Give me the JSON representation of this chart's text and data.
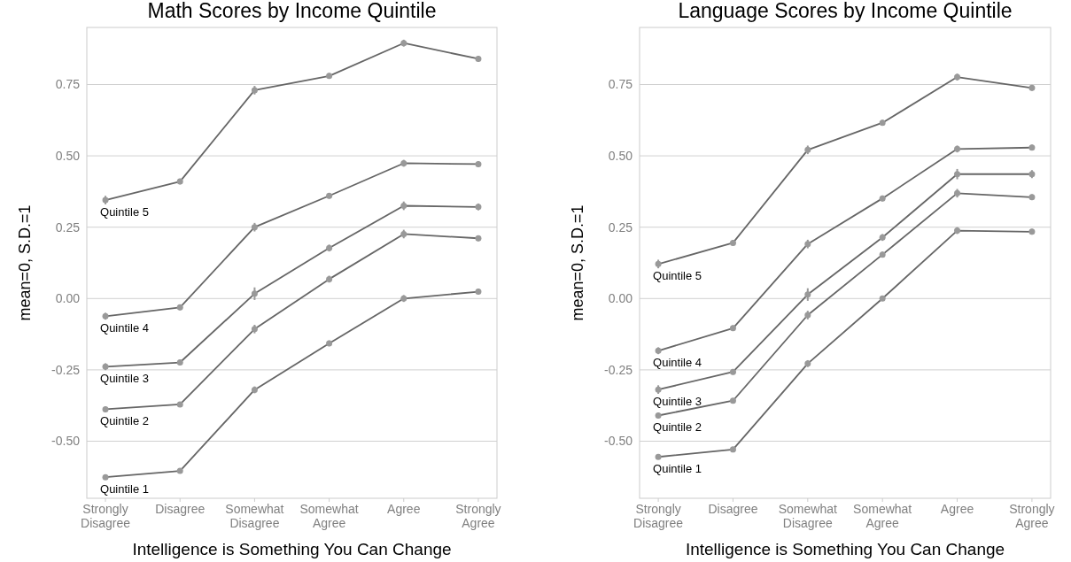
{
  "chart_data": [
    {
      "type": "line",
      "title": "Math Scores by Income Quintile",
      "xlabel": "Intelligence is Something You Can Change",
      "ylabel": "mean=0, S.D.=1",
      "categories": [
        "Strongly\nDisagree",
        "Disagree",
        "Somewhat\nDisagree",
        "Somewhat\nAgree",
        "Agree",
        "Strongly\nAgree"
      ],
      "ylim": [
        -0.7,
        0.95
      ],
      "yticks": [
        {
          "value": -0.5,
          "label": "-0.50"
        },
        {
          "value": -0.25,
          "label": "-0.25"
        },
        {
          "value": 0,
          "label": "0.00"
        },
        {
          "value": 0.25,
          "label": "0.25"
        },
        {
          "value": 0.5,
          "label": "0.50"
        },
        {
          "value": 0.75,
          "label": "0.75"
        }
      ],
      "grid": "y",
      "marker": "circle",
      "line_style": "solid",
      "series": [
        {
          "name": "Quintile 5",
          "color": "#666666",
          "values": [
            0.345,
            0.41,
            0.73,
            0.78,
            0.895,
            0.84
          ],
          "errors": [
            0.015,
            0.01,
            0.015,
            0.01,
            0.012,
            0.01
          ]
        },
        {
          "name": "Quintile 4",
          "color": "#666666",
          "values": [
            -0.062,
            -0.031,
            0.25,
            0.36,
            0.474,
            0.471
          ],
          "errors": [
            0.012,
            0.01,
            0.015,
            0.01,
            0.012,
            0.01
          ]
        },
        {
          "name": "Quintile 3",
          "color": "#666666",
          "values": [
            -0.239,
            -0.224,
            0.017,
            0.177,
            0.325,
            0.321
          ],
          "errors": [
            0.012,
            0.01,
            0.022,
            0.012,
            0.015,
            0.012
          ]
        },
        {
          "name": "Quintile 2",
          "color": "#666666",
          "values": [
            -0.388,
            -0.371,
            -0.107,
            0.068,
            0.226,
            0.211
          ],
          "errors": [
            0.01,
            0.008,
            0.015,
            0.012,
            0.015,
            0.01
          ]
        },
        {
          "name": "Quintile 1",
          "color": "#666666",
          "values": [
            -0.626,
            -0.604,
            -0.32,
            -0.157,
            0,
            0.024
          ],
          "errors": [
            0.008,
            0.008,
            0.012,
            0.01,
            0.012,
            0.01
          ]
        }
      ]
    },
    {
      "type": "line",
      "title": "Language Scores by Income Quintile",
      "xlabel": "Intelligence is Something You Can Change",
      "ylabel": "mean=0, S.D.=1",
      "categories": [
        "Strongly\nDisagree",
        "Disagree",
        "Somewhat\nDisagree",
        "Somewhat\nAgree",
        "Agree",
        "Strongly\nAgree"
      ],
      "ylim": [
        -0.7,
        0.95
      ],
      "yticks": [
        {
          "value": -0.5,
          "label": "-0.50"
        },
        {
          "value": -0.25,
          "label": "-0.25"
        },
        {
          "value": 0,
          "label": "0.00"
        },
        {
          "value": 0.25,
          "label": "0.25"
        },
        {
          "value": 0.5,
          "label": "0.50"
        },
        {
          "value": 0.75,
          "label": "0.75"
        }
      ],
      "grid": "y",
      "marker": "circle",
      "line_style": "solid",
      "series": [
        {
          "name": "Quintile 5",
          "color": "#666666",
          "values": [
            0.121,
            0.195,
            0.521,
            0.616,
            0.776,
            0.738
          ],
          "errors": [
            0.015,
            0.01,
            0.015,
            0.01,
            0.012,
            0.01
          ]
        },
        {
          "name": "Quintile 4",
          "color": "#666666",
          "values": [
            -0.183,
            -0.104,
            0.191,
            0.351,
            0.524,
            0.529
          ],
          "errors": [
            0.012,
            0.01,
            0.015,
            0.01,
            0.012,
            0.01
          ]
        },
        {
          "name": "Quintile 3",
          "color": "#666666",
          "values": [
            -0.319,
            -0.257,
            0.014,
            0.214,
            0.436,
            0.436
          ],
          "errors": [
            0.015,
            0.01,
            0.022,
            0.012,
            0.018,
            0.014
          ]
        },
        {
          "name": "Quintile 2",
          "color": "#666666",
          "values": [
            -0.41,
            -0.358,
            -0.058,
            0.154,
            0.369,
            0.355
          ],
          "errors": [
            0.01,
            0.008,
            0.015,
            0.01,
            0.015,
            0.01
          ]
        },
        {
          "name": "Quintile 1",
          "color": "#666666",
          "values": [
            -0.555,
            -0.529,
            -0.228,
            0,
            0.238,
            0.234
          ],
          "errors": [
            0.008,
            0.008,
            0.012,
            0.008,
            0.012,
            0.01
          ]
        }
      ]
    }
  ]
}
